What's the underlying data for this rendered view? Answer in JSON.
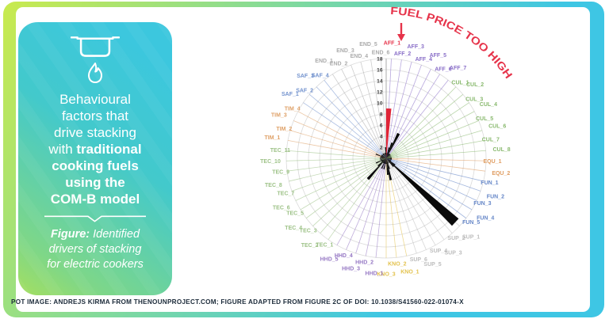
{
  "palette": {
    "frame_gradient": [
      "#C9EA4E",
      "#7ED9A0",
      "#3EC6E4"
    ],
    "card_gradient": [
      "#3CC7DE",
      "#43C9CB",
      "#A5DF60"
    ],
    "card_text": "#FFFFFF",
    "caption_text": "#1C2B3A"
  },
  "card": {
    "pot_icon": "cooking-pot-icon",
    "flame_icon": "flame-icon",
    "title_lines": [
      {
        "spans": [
          {
            "text": "Behavioural",
            "bold": false
          }
        ]
      },
      {
        "spans": [
          {
            "text": "factors that",
            "bold": false
          }
        ]
      },
      {
        "spans": [
          {
            "text": "drive stacking",
            "bold": false
          }
        ]
      },
      {
        "spans": [
          {
            "text": "with ",
            "bold": false
          },
          {
            "text": "traditional",
            "bold": true
          }
        ]
      },
      {
        "spans": [
          {
            "text": "cooking fuels",
            "bold": true
          }
        ]
      },
      {
        "spans": [
          {
            "text": "using the",
            "bold": true
          }
        ]
      },
      {
        "spans": [
          {
            "text": "COM-B model",
            "bold": true
          }
        ]
      }
    ],
    "figure_lines": [
      {
        "spans": [
          {
            "text": "Figure:",
            "bold": true
          },
          {
            "text": " Identified",
            "bold": false
          }
        ]
      },
      {
        "spans": [
          {
            "text": "drivers of stacking",
            "bold": false
          }
        ]
      },
      {
        "spans": [
          {
            "text": "for electric cookers",
            "bold": false
          }
        ]
      }
    ]
  },
  "annotation": {
    "label": "FUEL PRICE TOO HIGH",
    "arrow": "down-arrow",
    "color": "#E6334A"
  },
  "footer": {
    "caption": "POT IMAGE: ANDREJS KIRMA FROM THENOUNPROJECT.COM; FIGURE ADAPTED FROM FIGURE 2C OF DOI: 10.1038/S41560-022-01074-X"
  },
  "chart_data": {
    "type": "bar",
    "polar": true,
    "title": "",
    "xlabel": "",
    "ylabel": "",
    "rmax": 18,
    "rtick_step": 2,
    "tick_labels": [
      "0",
      "2",
      "4",
      "6",
      "8",
      "10",
      "12",
      "14",
      "16",
      "18"
    ],
    "grid": true,
    "bar_color": "#0B0B0B",
    "highlight_category": "AFF_1",
    "highlight_color": "#E02437",
    "highlight_label_color": "#E6334A",
    "group_colors": {
      "AFF": "#8A6FC8",
      "CUL": "#89B96E",
      "EQU": "#DF9C60",
      "FUN": "#6687C8",
      "SUP": "#BDBDBD",
      "KNO": "#E3C24D",
      "HHD": "#9678C4",
      "TEC": "#9DC287",
      "TIM": "#DFA168",
      "SAF": "#7292CE",
      "END": "#ABABAB"
    },
    "categories": [
      "AFF_1",
      "AFF_2",
      "AFF_3",
      "AFF_4",
      "AFF_5",
      "AFF_6",
      "AFF_7",
      "CUL_1",
      "CUL_2",
      "CUL_3",
      "CUL_4",
      "CUL_5",
      "CUL_6",
      "CUL_7",
      "CUL_8",
      "EQU_1",
      "EQU_2",
      "FUN_1",
      "FUN_2",
      "FUN_3",
      "FUN_4",
      "FUN_5",
      "SUP_1",
      "SUP_2",
      "SUP_3",
      "SUP_4",
      "SUP_5",
      "SUP_6",
      "KNO_1",
      "KNO_2",
      "KNO_3",
      "HHD_1",
      "HHD_2",
      "HHD_3",
      "HHD_4",
      "HHD_5",
      "TEC_1",
      "TEC_2",
      "TEC_3",
      "TEC_4",
      "TEC_5",
      "TEC_6",
      "TEC_7",
      "TEC_8",
      "TEC_9",
      "TEC_10",
      "TEC_11",
      "TIM_1",
      "TIM_2",
      "TIM_3",
      "TIM_4",
      "SAF_1",
      "SAF_2",
      "SAF_3",
      "SAF_4",
      "END_1",
      "END_2",
      "END_3",
      "END_4",
      "END_5",
      "END_6"
    ],
    "values": [
      9,
      1,
      2,
      3,
      5,
      1,
      1,
      1,
      1,
      0,
      1,
      0,
      1,
      0,
      1,
      1,
      1,
      1,
      0,
      1,
      1,
      2,
      17,
      2,
      1,
      0,
      1,
      2,
      4,
      3,
      1,
      1,
      2,
      1,
      2,
      1,
      1,
      5,
      2,
      1,
      1,
      2,
      0,
      1,
      0,
      1,
      1,
      1,
      1,
      2,
      1,
      1,
      1,
      0,
      1,
      1,
      1,
      0,
      1,
      1,
      2
    ]
  }
}
